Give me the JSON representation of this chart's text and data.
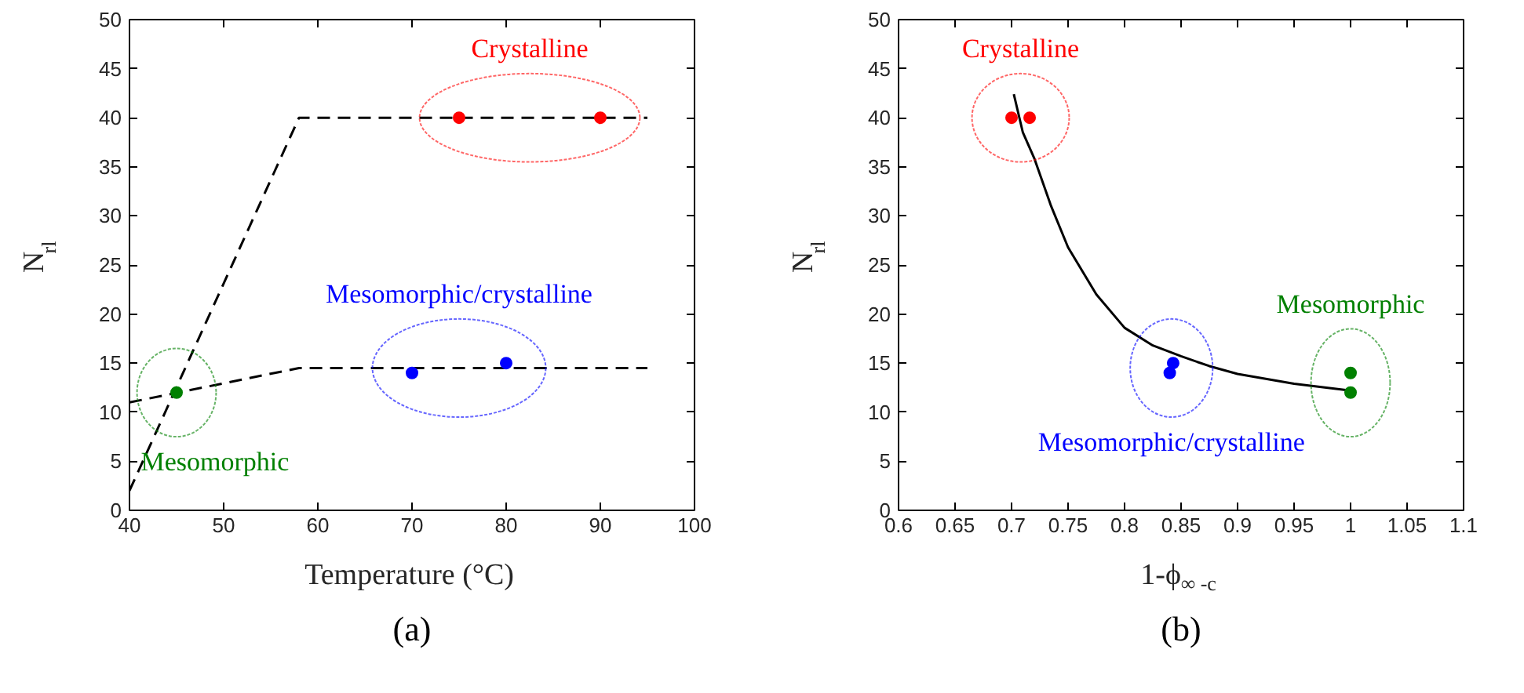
{
  "chart_data": [
    {
      "type": "scatter",
      "xlabel": "Temperature (°C)",
      "ylabel": "N$_{rl}$",
      "annotations": [
        "(a)"
      ],
      "xlim": [
        40,
        100
      ],
      "ylim": [
        0,
        50
      ],
      "xticks": [
        40,
        50,
        60,
        70,
        80,
        90,
        100
      ],
      "yticks": [
        0,
        5,
        10,
        15,
        20,
        25,
        30,
        35,
        40,
        45,
        50
      ],
      "marker": "circle",
      "grid": false,
      "series": [
        {
          "type": "line",
          "line_style": "dashed",
          "marker": "none",
          "color": "#000000",
          "x": [
            40,
            58,
            95
          ],
          "values": [
            2,
            40,
            40
          ]
        },
        {
          "type": "line",
          "line_style": "dashed",
          "marker": "none",
          "color": "#000000",
          "x": [
            40,
            58,
            95
          ],
          "values": [
            11,
            14.5,
            14.5
          ]
        },
        {
          "name": "Crystalline",
          "color": "#ff0000",
          "x": [
            75,
            90
          ],
          "values": [
            40,
            40
          ]
        },
        {
          "name": "Mesomorphic/crystalline",
          "color": "#0000ff",
          "x": [
            70,
            80
          ],
          "values": [
            14,
            15
          ]
        },
        {
          "name": "Mesomorphic",
          "color": "#008000",
          "x": [
            45
          ],
          "values": [
            12
          ]
        }
      ]
    },
    {
      "type": "scatter",
      "xlabel": "1-ϕ$_{∞ -c}$",
      "ylabel": "N$_{rl}$",
      "annotations": [
        "(b)"
      ],
      "xlim": [
        0.6,
        1.1
      ],
      "ylim": [
        0,
        50
      ],
      "xticks": [
        0.6,
        0.65,
        0.7,
        0.75,
        0.8,
        0.85,
        0.9,
        0.95,
        1,
        1.05,
        1.1
      ],
      "yticks": [
        0,
        5,
        10,
        15,
        20,
        25,
        30,
        35,
        40,
        45,
        50
      ],
      "marker": "circle",
      "grid": false,
      "series": [
        {
          "type": "line",
          "line_style": "solid",
          "marker": "none",
          "color": "#000000",
          "x": [
            0.702,
            0.71,
            0.72,
            0.735,
            0.75,
            0.775,
            0.8,
            0.825,
            0.85,
            0.875,
            0.9,
            0.95,
            1.0
          ],
          "values": [
            42.4,
            38.5,
            35.9,
            31,
            26.8,
            22,
            18.6,
            16.8,
            15.7,
            14.7,
            13.9,
            12.9,
            12.2
          ]
        },
        {
          "name": "Crystalline",
          "color": "#ff0000",
          "x": [
            0.7,
            0.716
          ],
          "values": [
            40,
            40
          ]
        },
        {
          "name": "Mesomorphic/crystalline",
          "color": "#0000ff",
          "x": [
            0.84,
            0.843
          ],
          "values": [
            14,
            15
          ]
        },
        {
          "name": "Mesomorphic",
          "color": "#008000",
          "x": [
            1,
            1
          ],
          "values": [
            14,
            12
          ]
        }
      ]
    }
  ]
}
